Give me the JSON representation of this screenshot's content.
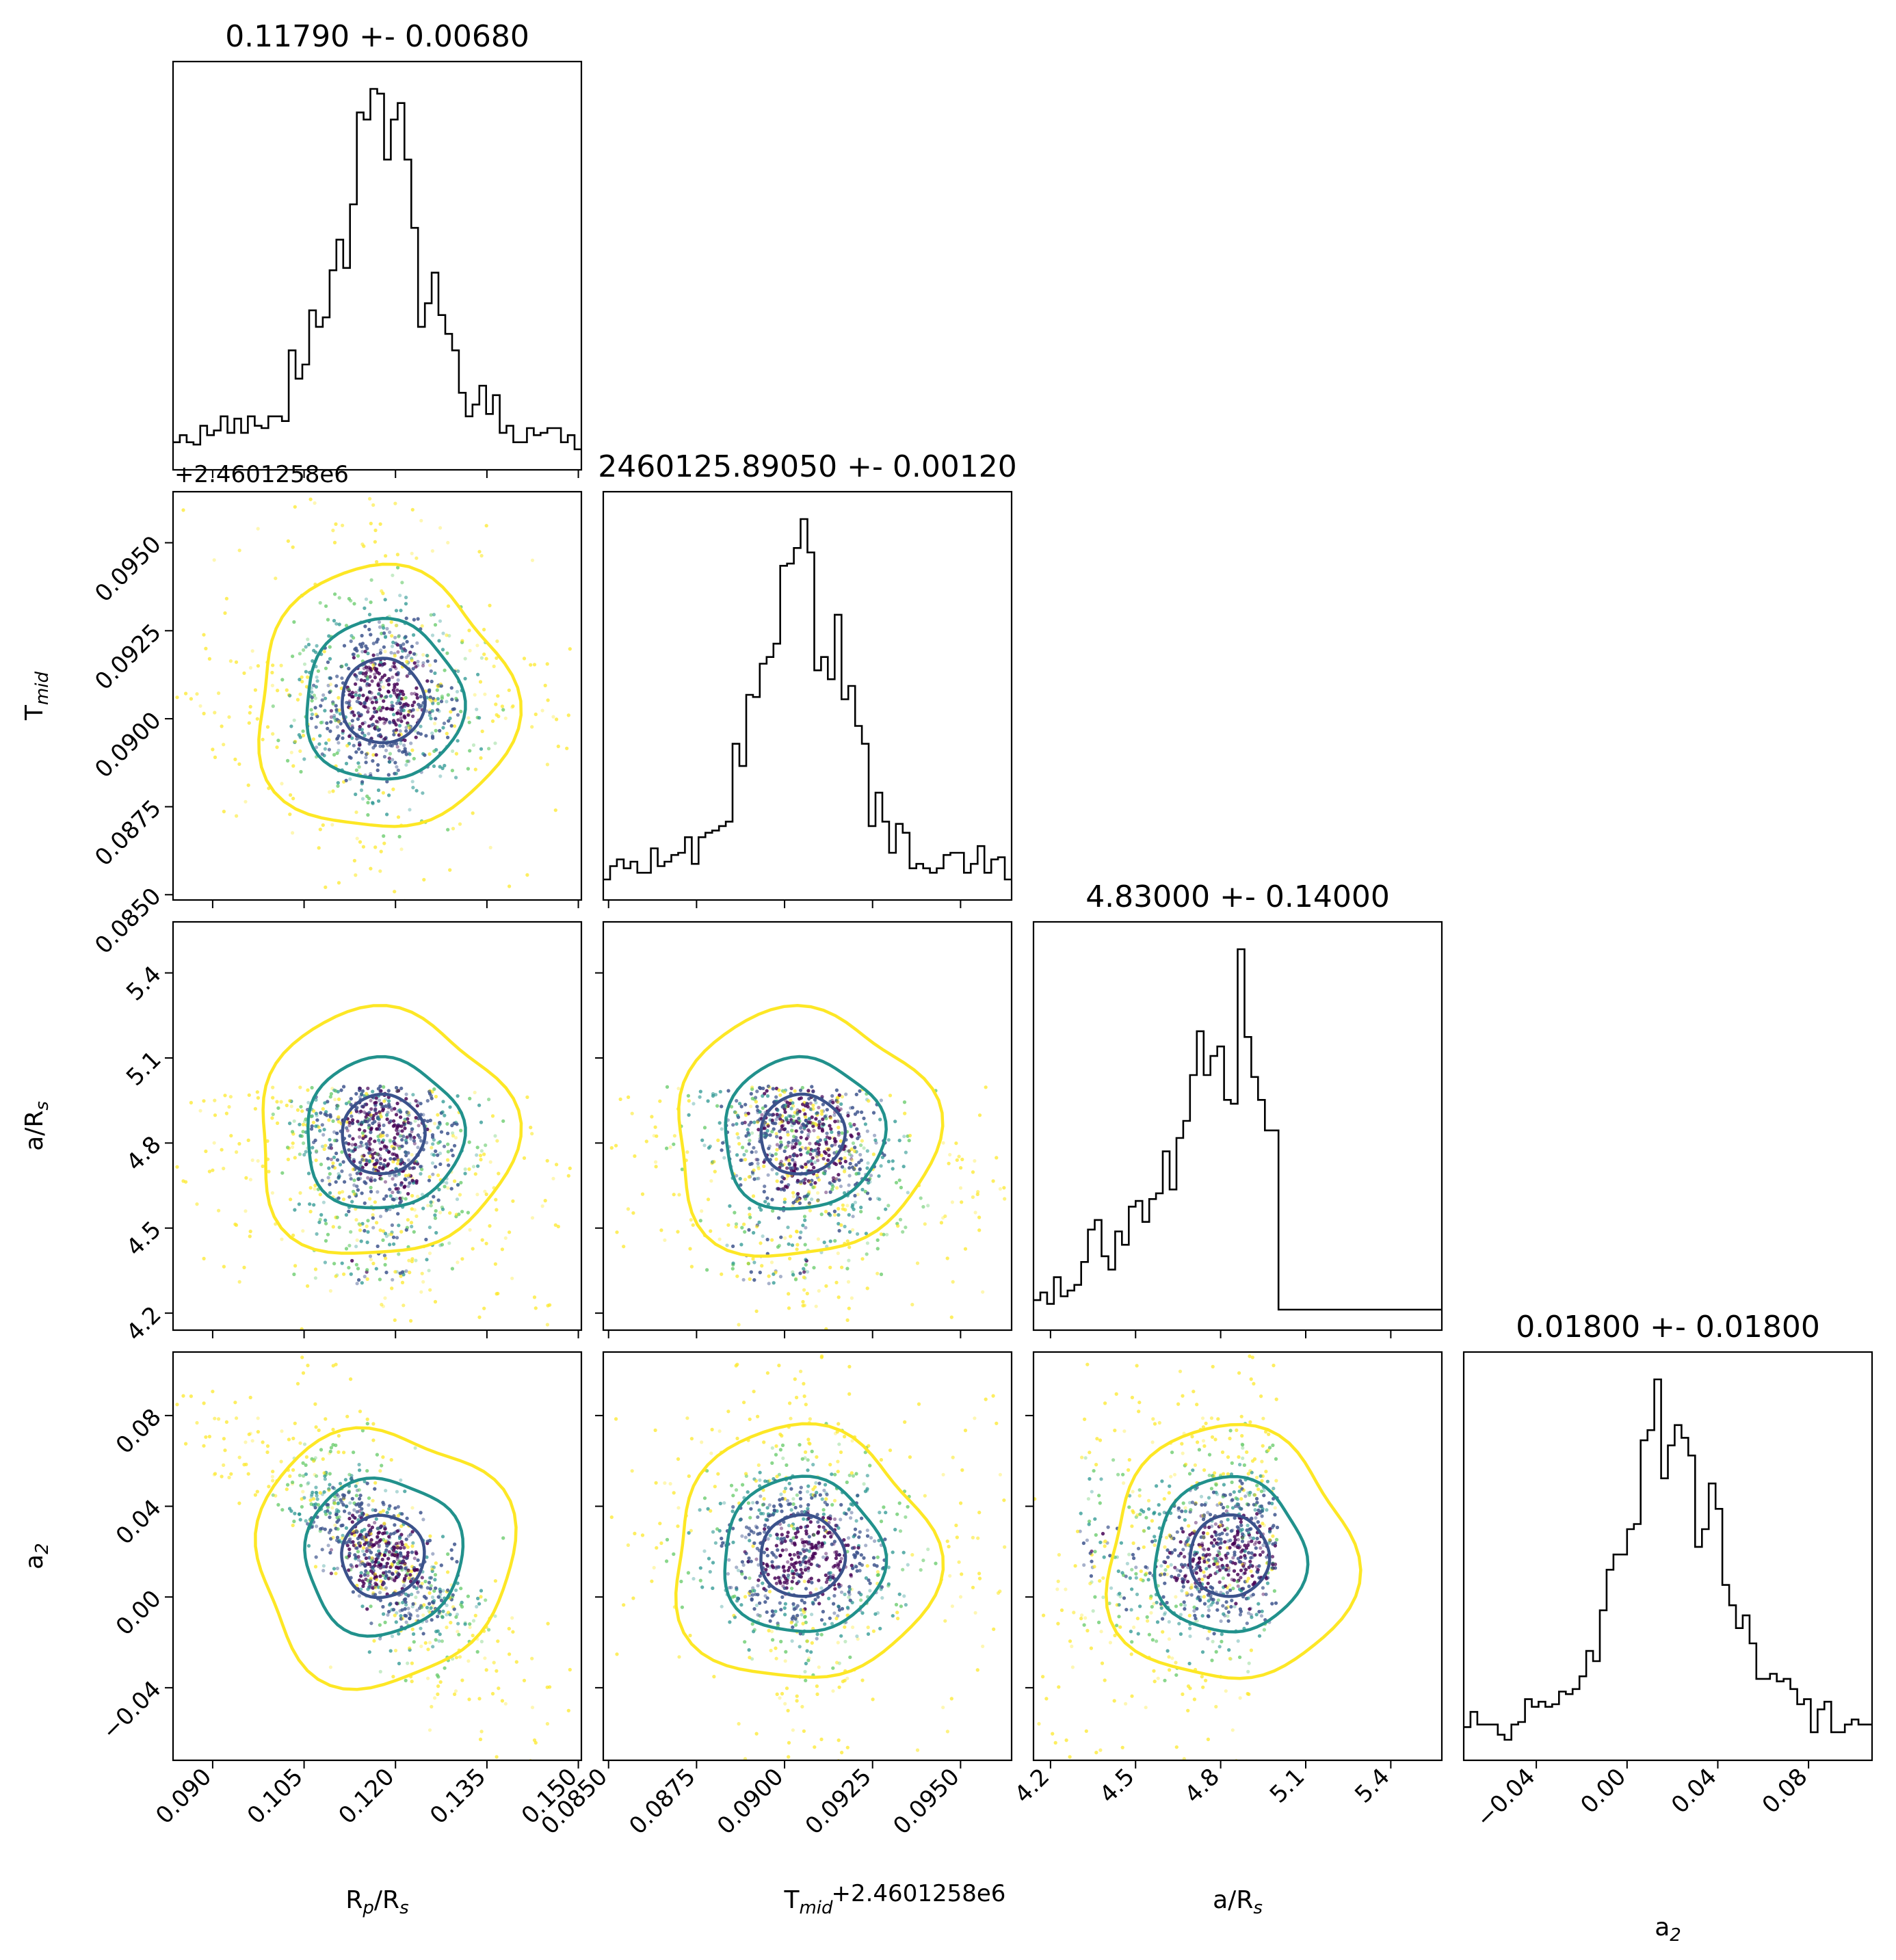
{
  "chart_data": {
    "type": "corner",
    "parameters": [
      {
        "id": "rp",
        "label": "Rₚ/Rₛ",
        "label_main": "R",
        "label_sub1": "p",
        "label_mid": "/R",
        "label_sub2": "s",
        "title": "0.11790 +- 0.00680",
        "range": [
          0.0835,
          0.1505
        ],
        "ticks": [
          0.09,
          0.105,
          0.12,
          0.135,
          0.15
        ],
        "tick_labels": [
          "0.090",
          "0.105",
          "0.120",
          "0.135",
          "0.150"
        ],
        "mean": 0.1179,
        "sigma": 0.0068
      },
      {
        "id": "tmid",
        "label_main": "T",
        "label_sub1": "mid",
        "title": "2460125.89050 +- 0.00120",
        "range": [
          0.08485,
          0.09645
        ],
        "ticks": [
          0.085,
          0.0875,
          0.09,
          0.0925,
          0.095
        ],
        "tick_labels": [
          "0.0850",
          "0.0875",
          "0.0900",
          "0.0925",
          "0.0950"
        ],
        "offset_text": "+2.4601258e6",
        "mean": 0.0905,
        "sigma": 0.0012
      },
      {
        "id": "ars",
        "label_main": "a/R",
        "label_sub1": "s",
        "title": "4.83000 +- 0.14000",
        "range": [
          4.14,
          5.58
        ],
        "ticks": [
          4.2,
          4.5,
          4.8,
          5.1,
          5.4
        ],
        "tick_labels": [
          "4.2",
          "4.5",
          "4.8",
          "5.1",
          "5.4"
        ],
        "upper_bound": 5.0,
        "mean": 4.83,
        "sigma": 0.14
      },
      {
        "id": "a2",
        "label_main": "a",
        "label_sub1": "2",
        "title": "0.01800 +- 0.01800",
        "range": [
          -0.072,
          0.108
        ],
        "ticks": [
          -0.04,
          0.0,
          0.04,
          0.08
        ],
        "tick_labels": [
          "−0.04",
          "0.00",
          "0.04",
          "0.08"
        ],
        "mean": 0.018,
        "sigma": 0.018
      }
    ],
    "correlations": {
      "rp|a2": -0.72,
      "rp|ars": -0.25,
      "tmid|ars": -0.35,
      "ars|a2": 0.15
    },
    "contour_colors": [
      "#3b528b",
      "#21918c",
      "#fde725"
    ],
    "point_colormap": [
      "#440154",
      "#3b528b",
      "#21918c",
      "#5ec962",
      "#fde725"
    ],
    "n_points": 2600
  }
}
